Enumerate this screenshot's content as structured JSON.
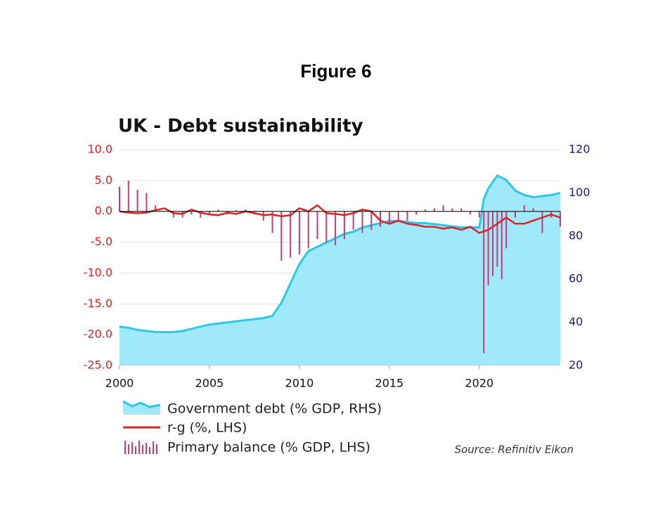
{
  "chart_data": {
    "type": "combo",
    "figure_label": "Figure 6",
    "title": "UK - Debt sustainability",
    "source": "Source: Refinitiv Eikon",
    "xlim": [
      2000,
      2024.5
    ],
    "xticks": [
      2000,
      2005,
      2010,
      2015,
      2020
    ],
    "ylim": [
      -25,
      10
    ],
    "yticks": [
      {
        "value": -25,
        "label": "-25.0"
      },
      {
        "value": -20,
        "label": "-20.0"
      },
      {
        "value": -15,
        "label": "-15.0"
      },
      {
        "value": -10,
        "label": "-10.0"
      },
      {
        "value": -5,
        "label": "-5.0"
      },
      {
        "value": 0,
        "label": "0.0"
      },
      {
        "value": 5,
        "label": "5.0"
      },
      {
        "value": 10,
        "label": "10.0"
      }
    ],
    "y2lim": [
      20,
      120
    ],
    "y2ticks": [
      20,
      40,
      60,
      80,
      100,
      120
    ],
    "grid": true,
    "series": [
      {
        "name": "Government debt (% GDP, RHS)",
        "type": "area",
        "axis": "y2",
        "color": "#2fc6ea",
        "fill": "#a0e9fb",
        "x": [
          2000,
          2000.5,
          2001,
          2001.5,
          2002,
          2002.5,
          2003,
          2003.5,
          2004,
          2004.5,
          2005,
          2005.5,
          2006,
          2006.5,
          2007,
          2007.5,
          2008,
          2008.5,
          2009,
          2009.5,
          2010,
          2010.5,
          2011,
          2011.5,
          2012,
          2012.5,
          2013,
          2013.5,
          2014,
          2014.5,
          2015,
          2015.5,
          2016,
          2016.5,
          2017,
          2017.5,
          2018,
          2018.5,
          2019,
          2019.5,
          2020,
          2020.25,
          2020.5,
          2021,
          2021.5,
          2022,
          2022.5,
          2023,
          2023.5,
          2024,
          2024.5
        ],
        "values": [
          38,
          37.5,
          36.5,
          36,
          35.5,
          35.5,
          35.5,
          36,
          37,
          38,
          39,
          39.5,
          40,
          40.5,
          41,
          41.5,
          42,
          43,
          49,
          58,
          67,
          73,
          75,
          77,
          79,
          81,
          82,
          84,
          85,
          86,
          87,
          87,
          86.5,
          86,
          86,
          85.5,
          85,
          84.5,
          84,
          84,
          84,
          97,
          102,
          108,
          106,
          101,
          99,
          98,
          98.5,
          99,
          100
        ]
      },
      {
        "name": "r-g (%, LHS)",
        "type": "line",
        "axis": "y",
        "color": "#e41f1f",
        "x": [
          2000,
          2000.5,
          2001,
          2001.5,
          2002,
          2002.5,
          2003,
          2003.5,
          2004,
          2004.5,
          2005,
          2005.5,
          2006,
          2006.5,
          2007,
          2007.5,
          2008,
          2008.5,
          2009,
          2009.5,
          2010,
          2010.5,
          2011,
          2011.5,
          2012,
          2012.5,
          2013,
          2013.5,
          2014,
          2014.5,
          2015,
          2015.5,
          2016,
          2016.5,
          2017,
          2017.5,
          2018,
          2018.5,
          2019,
          2019.5,
          2020,
          2020.5,
          2021,
          2021.5,
          2022,
          2022.5,
          2023,
          2023.5,
          2024,
          2024.5
        ],
        "values": [
          0,
          -0.2,
          -0.3,
          -0.2,
          0.2,
          0.5,
          -0.3,
          -0.4,
          0.3,
          -0.2,
          -0.5,
          -0.6,
          -0.2,
          -0.4,
          0,
          -0.3,
          -0.6,
          -0.5,
          -0.8,
          -0.6,
          0.5,
          0,
          1,
          -0.3,
          -0.4,
          -0.6,
          -0.3,
          0.3,
          0,
          -1.5,
          -2,
          -1.5,
          -2,
          -2.2,
          -2.5,
          -2.5,
          -2.8,
          -2.6,
          -3,
          -2.5,
          -3.5,
          -3,
          -2,
          -1,
          -2,
          -2,
          -1.5,
          -1,
          -0.5,
          -1
        ]
      },
      {
        "name": "Primary balance (% GDP, LHS)",
        "type": "bar",
        "axis": "y",
        "color": "#c23c78",
        "x": [
          2000,
          2000.5,
          2001,
          2001.5,
          2002,
          2003,
          2003.5,
          2004,
          2004.5,
          2005,
          2005.5,
          2006,
          2006.5,
          2007,
          2007.5,
          2008,
          2008.5,
          2009,
          2009.5,
          2010,
          2010.5,
          2011,
          2011.5,
          2012,
          2012.5,
          2013,
          2013.5,
          2014,
          2014.5,
          2015,
          2015.5,
          2016,
          2016.5,
          2017,
          2017.5,
          2018,
          2018.5,
          2019,
          2019.5,
          2020,
          2020.25,
          2020.5,
          2020.75,
          2021,
          2021.25,
          2021.5,
          2022,
          2022.5,
          2023,
          2023.5,
          2024,
          2024.5
        ],
        "values": [
          4,
          5,
          3.5,
          3,
          1,
          -1,
          -1,
          -0.5,
          -1,
          -0.5,
          0.3,
          -0.5,
          0.2,
          0.3,
          -0.5,
          -1.5,
          -3.5,
          -8,
          -7.5,
          -7,
          -6,
          -4.5,
          -5,
          -5.5,
          -4.5,
          -3,
          -3.5,
          -3,
          -2.5,
          -2,
          -1.5,
          -1.5,
          -0.5,
          0.3,
          0.5,
          1,
          0.5,
          0.5,
          -0.5,
          -1,
          -23,
          -12,
          -10.5,
          -9,
          -11,
          -6,
          -1,
          1,
          0.5,
          -3.5,
          -1,
          -2.5
        ]
      }
    ]
  }
}
